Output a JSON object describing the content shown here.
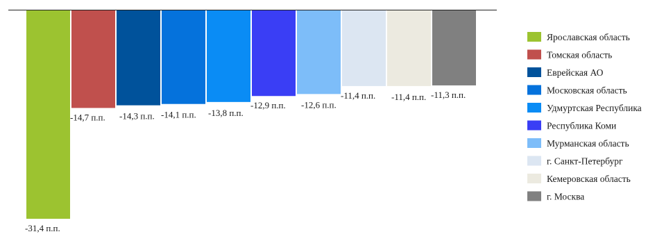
{
  "chart_data": {
    "type": "bar",
    "title": "",
    "xlabel": "",
    "ylabel": "",
    "ylim": [
      -31.4,
      0
    ],
    "grid": false,
    "legend_position": "right",
    "value_suffix": " п.п.",
    "categories": [
      "Ярославская область",
      "Томская область",
      "Еврейская АО",
      "Московская область",
      "Удмуртская Республика",
      "Республика Коми",
      "Мурманская область",
      "г. Санкт-Петербург",
      "Кемеровская область",
      "г. Москва"
    ],
    "values": [
      -31.4,
      -14.7,
      -14.3,
      -14.1,
      -13.8,
      -12.9,
      -12.6,
      -11.4,
      -11.4,
      -11.3
    ],
    "data_labels": [
      "-31,4 п.п.",
      "-14,7 п.п.",
      "-14,3 п.п.",
      "-14,1 п.п.",
      "-13,8 п.п.",
      "-12,9 п.п.",
      "-12,6 п.п.",
      "-11,4 п.п.",
      "-11,4 п.п.",
      "-11,3 п.п."
    ],
    "colors": [
      "#9CC330",
      "#C0504D",
      "#00529B",
      "#0572DC",
      "#0A8CF5",
      "#3A3EF5",
      "#7DBDF9",
      "#DCE6F2",
      "#ECEAE0",
      "#808080"
    ]
  }
}
